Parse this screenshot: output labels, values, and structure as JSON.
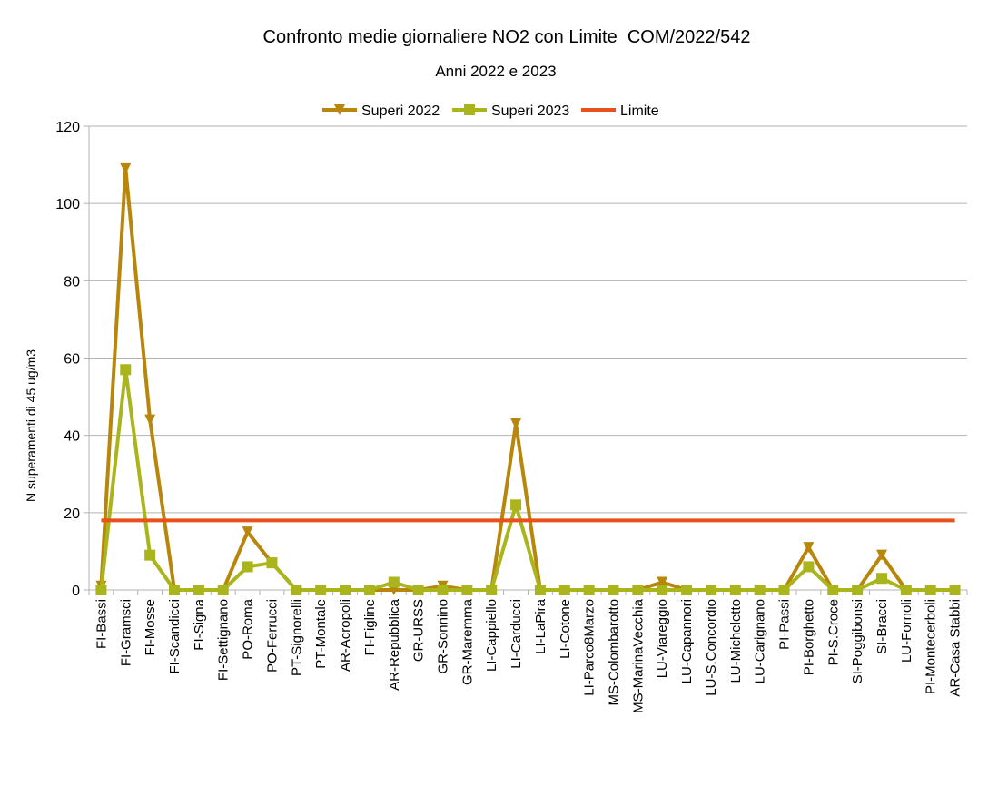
{
  "chart_data": {
    "type": "line",
    "title": "Confronto medie giornaliere NO2 con Limite  COM/2022/542",
    "subtitle": "Anni 2022 e 2023",
    "xlabel": "",
    "ylabel": "N superamenti di 45 ug/m3",
    "ylim": [
      0,
      120
    ],
    "yticks": [
      0,
      20,
      40,
      60,
      80,
      100,
      120
    ],
    "grid": true,
    "legend_position": "top",
    "categories": [
      "FI-Bassi",
      "FI-Gramsci",
      "FI-Mosse",
      "FI-Scandicci",
      "FI-Signa",
      "FI-Settignano",
      "PO-Roma",
      "PO-Ferrucci",
      "PT-Signorelli",
      "PT-Montale",
      "AR-Acropoli",
      "FI-Figline",
      "AR-Repubblica",
      "GR-URSS",
      "GR-Sonnino",
      "GR-Maremma",
      "LI-Cappiello",
      "LI-Carducci",
      "LI-LaPira",
      "LI-Cotone",
      "LI-Parco8Marzo",
      "MS-Colombarotto",
      "MS-MarinaVecchia",
      "LU-Viareggio",
      "LU-Capannori",
      "LU-S.Concordio",
      "LU-Micheletto",
      "LU-Carignano",
      "PI-Passi",
      "PI-Borghetto",
      "PI-S.Croce",
      "SI-Poggibonsi",
      "SI-Bracci",
      "LU-Fornoli",
      "PI-Montecerboli",
      "AR-Casa Stabbi"
    ],
    "series": [
      {
        "name": "Superi 2022",
        "color": "#b8860b",
        "marker": "triangle-down",
        "values": [
          1,
          109,
          44,
          0,
          0,
          0,
          15,
          7,
          0,
          0,
          0,
          0,
          0,
          0,
          1,
          0,
          0,
          43,
          0,
          0,
          0,
          0,
          0,
          2,
          0,
          0,
          0,
          0,
          0,
          11,
          0,
          0,
          9,
          0,
          0,
          0
        ]
      },
      {
        "name": "Superi 2023",
        "color": "#a9b51a",
        "marker": "square",
        "values": [
          0,
          57,
          9,
          0,
          0,
          0,
          6,
          7,
          0,
          0,
          0,
          0,
          2,
          0,
          0,
          0,
          0,
          22,
          0,
          0,
          0,
          0,
          0,
          0,
          0,
          0,
          0,
          0,
          0,
          6,
          0,
          0,
          3,
          0,
          0,
          0
        ]
      },
      {
        "name": "Limite",
        "color": "#e8501c",
        "marker": "none",
        "constant": 18
      }
    ]
  }
}
